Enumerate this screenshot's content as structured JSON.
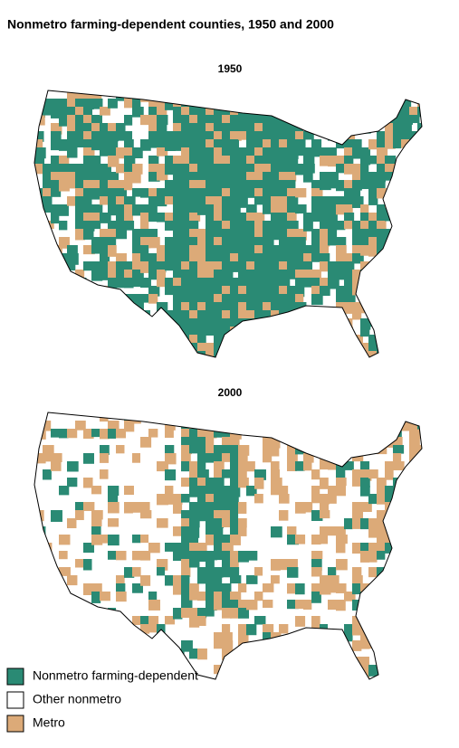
{
  "title": "Nonmetro farming-dependent counties, 1950 and 2000",
  "maps": [
    {
      "label": "1950"
    },
    {
      "label": "2000"
    }
  ],
  "legend": [
    {
      "label": "Nonmetro farming-dependent",
      "color": "#2a8a74"
    },
    {
      "label": "Other nonmetro",
      "color": "#ffffff"
    },
    {
      "label": "Metro",
      "color": "#dcaa78"
    }
  ]
}
